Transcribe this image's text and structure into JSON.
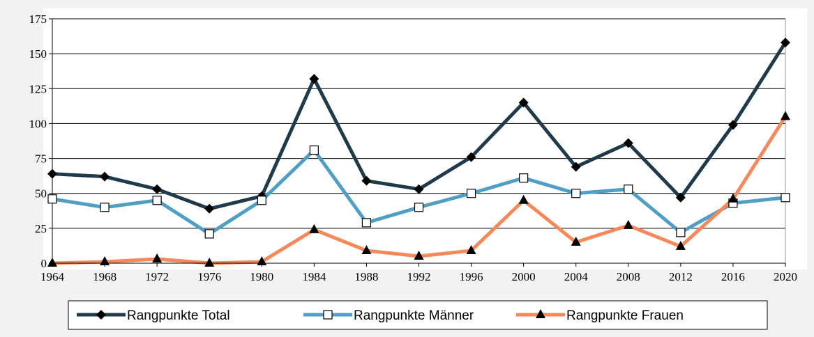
{
  "chart_data": {
    "type": "line",
    "categories": [
      "1964",
      "1968",
      "1972",
      "1976",
      "1980",
      "1984",
      "1988",
      "1992",
      "1996",
      "2000",
      "2004",
      "2008",
      "2012",
      "2016",
      "2020"
    ],
    "series": [
      {
        "name": "Rangpunkte Total",
        "color": "#1f3a4a",
        "marker": "diamond",
        "values": [
          64,
          62,
          53,
          39,
          48,
          132,
          59,
          53,
          76,
          115,
          69,
          86,
          47,
          99,
          158
        ]
      },
      {
        "name": "Rangpunkte Männer",
        "color": "#4f9fc4",
        "marker": "square",
        "values": [
          46,
          40,
          45,
          21,
          45,
          81,
          29,
          40,
          50,
          61,
          50,
          53,
          22,
          43,
          47
        ]
      },
      {
        "name": "Rangpunkte Frauen",
        "color": "#f7885a",
        "marker": "triangle",
        "values": [
          0,
          1,
          3,
          0,
          1,
          24,
          9,
          5,
          9,
          45,
          15,
          27,
          12,
          46,
          105
        ]
      }
    ],
    "ylim": [
      0,
      175
    ],
    "yticks": [
      0,
      25,
      50,
      75,
      100,
      125,
      150,
      175
    ],
    "grid": true,
    "legend": "bottom"
  }
}
